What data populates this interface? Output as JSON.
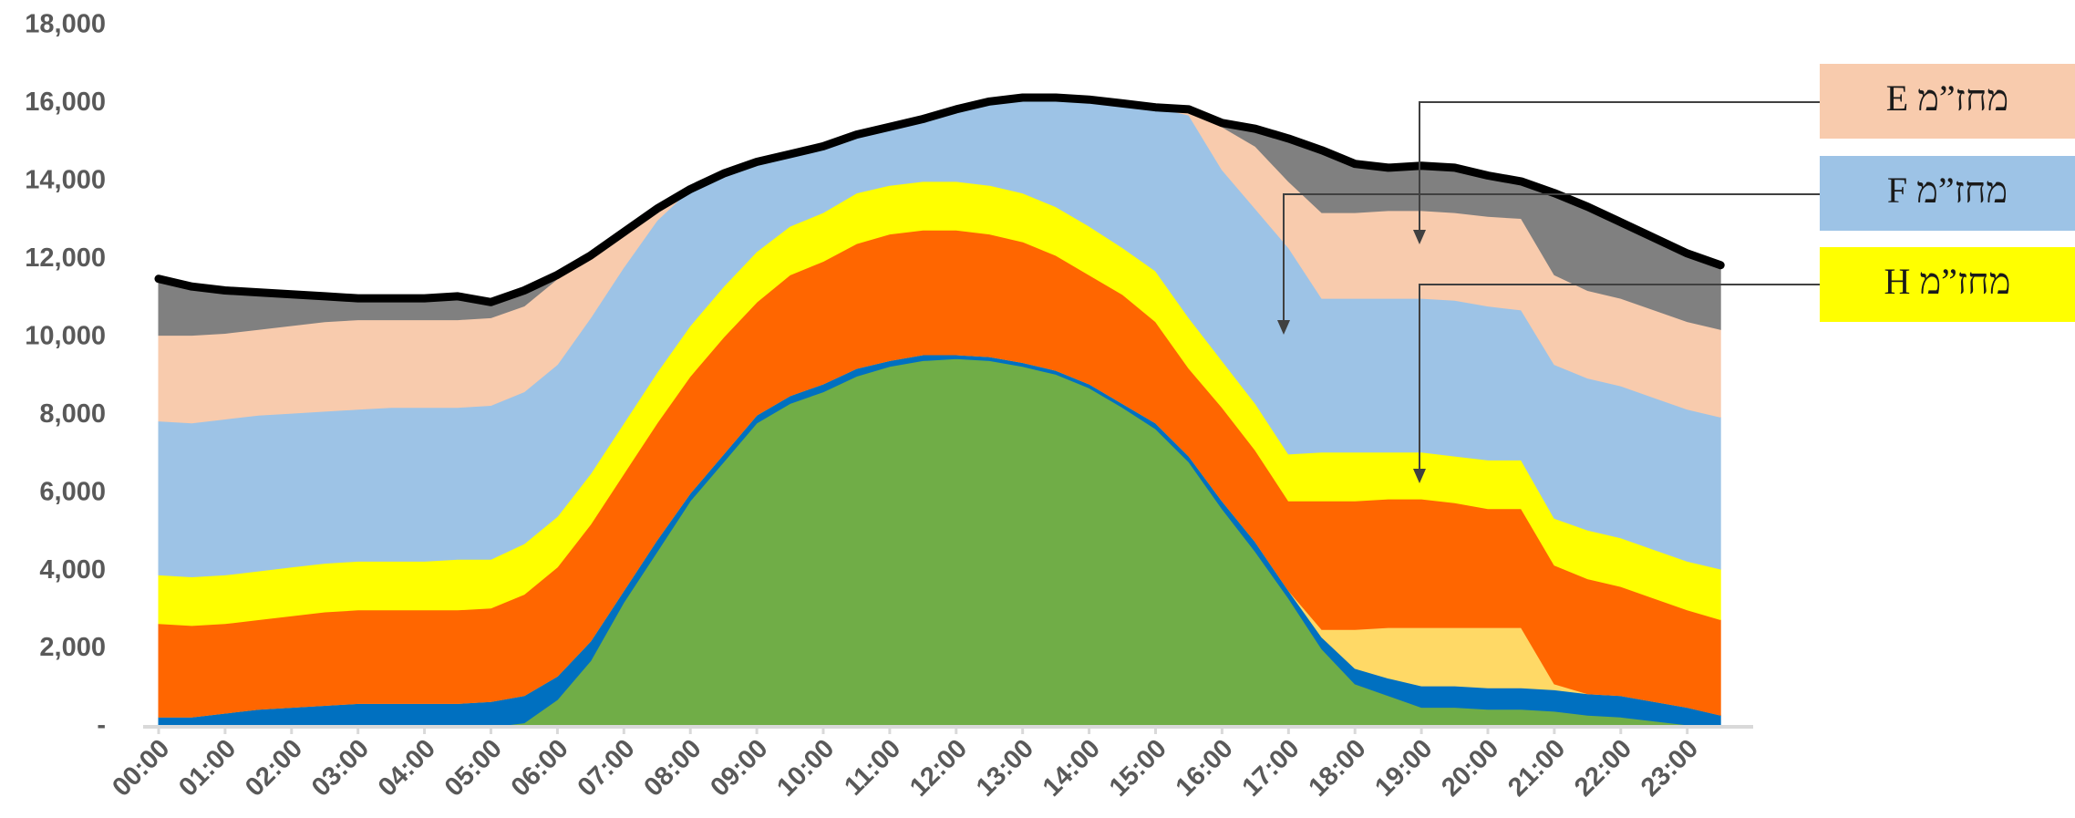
{
  "chart_data": {
    "type": "stacked-area",
    "categories": [
      "00:00",
      null,
      "01:00",
      null,
      "02:00",
      null,
      "03:00",
      null,
      "04:00",
      null,
      "05:00",
      null,
      "06:00",
      null,
      "07:00",
      null,
      "08:00",
      null,
      "09:00",
      null,
      "10:00",
      null,
      "11:00",
      null,
      "12:00",
      null,
      "13:00",
      null,
      "14:00",
      null,
      "15:00",
      null,
      "16:00",
      null,
      "17:00",
      null,
      "18:00",
      null,
      "19:00",
      null,
      "20:00",
      null,
      "21:00",
      null,
      "22:00",
      null,
      "23:00",
      null
    ],
    "series": [
      {
        "color": "#70ad47",
        "values": [
          0,
          0,
          0,
          0,
          0,
          0,
          0,
          0,
          0,
          0,
          0,
          100,
          700,
          1700,
          3200,
          4500,
          5800,
          6800,
          7800,
          8300,
          8600,
          9000,
          9250,
          9400,
          9450,
          9400,
          9250,
          9050,
          8700,
          8200,
          7650,
          6800,
          5600,
          4500,
          3300,
          2000,
          1100,
          800,
          500,
          500,
          450,
          450,
          400,
          300,
          250,
          150,
          50,
          0
        ]
      },
      {
        "color": "#0070c0",
        "values": [
          250,
          250,
          350,
          450,
          500,
          550,
          600,
          600,
          600,
          600,
          650,
          700,
          600,
          500,
          300,
          300,
          200,
          200,
          200,
          200,
          200,
          200,
          150,
          150,
          100,
          100,
          100,
          100,
          100,
          100,
          150,
          150,
          200,
          250,
          200,
          300,
          400,
          450,
          550,
          550,
          550,
          550,
          550,
          550,
          550,
          500,
          450,
          300
        ]
      },
      {
        "color": "#ffd966",
        "values": [
          0,
          0,
          0,
          0,
          0,
          0,
          0,
          0,
          0,
          0,
          0,
          0,
          0,
          0,
          0,
          0,
          0,
          0,
          0,
          0,
          0,
          0,
          0,
          0,
          0,
          0,
          0,
          0,
          0,
          0,
          0,
          0,
          0,
          0,
          0,
          200,
          1000,
          1300,
          1500,
          1500,
          1550,
          1550,
          150,
          0,
          0,
          0,
          0,
          0
        ]
      },
      {
        "color": "#ff6600",
        "values": [
          2400,
          2350,
          2300,
          2300,
          2350,
          2400,
          2400,
          2400,
          2400,
          2400,
          2400,
          2600,
          2800,
          3000,
          3000,
          3000,
          3000,
          3000,
          2900,
          3100,
          3150,
          3200,
          3250,
          3200,
          3200,
          3150,
          3100,
          2950,
          2800,
          2800,
          2600,
          2250,
          2400,
          2350,
          2300,
          3300,
          3300,
          3300,
          3300,
          3200,
          3050,
          3050,
          3050,
          2950,
          2800,
          2650,
          2500,
          2450
        ]
      },
      {
        "name": "מחז”מ H",
        "color": "#ffff00",
        "values": [
          1250,
          1250,
          1250,
          1250,
          1250,
          1250,
          1250,
          1250,
          1250,
          1300,
          1250,
          1300,
          1300,
          1300,
          1300,
          1300,
          1300,
          1300,
          1300,
          1250,
          1250,
          1300,
          1250,
          1250,
          1250,
          1250,
          1250,
          1250,
          1250,
          1200,
          1300,
          1300,
          1200,
          1200,
          1200,
          1250,
          1250,
          1200,
          1200,
          1200,
          1250,
          1250,
          1200,
          1250,
          1250,
          1250,
          1250,
          1300
        ]
      },
      {
        "name": "מחז”מ F",
        "color": "#9dc3e6",
        "values": [
          3950,
          3950,
          4000,
          4000,
          3950,
          3900,
          3900,
          3950,
          3950,
          3900,
          3950,
          3900,
          3900,
          4000,
          4000,
          3900,
          3500,
          2900,
          2300,
          1850,
          1700,
          1500,
          1500,
          1600,
          1850,
          2150,
          2450,
          2800,
          3250,
          3700,
          4200,
          5200,
          4900,
          5000,
          5300,
          3950,
          3950,
          3950,
          3950,
          4000,
          3950,
          3850,
          3950,
          3900,
          3900,
          3900,
          3900,
          3900
        ]
      },
      {
        "name": "מחז”מ E",
        "color": "#f8cbad",
        "values": [
          2200,
          2250,
          2200,
          2200,
          2250,
          2300,
          2300,
          2250,
          2250,
          2250,
          2250,
          2200,
          2200,
          1600,
          900,
          300,
          0,
          0,
          0,
          0,
          0,
          0,
          0,
          0,
          0,
          0,
          0,
          0,
          0,
          0,
          0,
          150,
          1100,
          1600,
          1700,
          2200,
          2200,
          2250,
          2250,
          2250,
          2300,
          2350,
          2300,
          2250,
          2250,
          2250,
          2250,
          2250
        ]
      },
      {
        "color": "#808080",
        "outline": "#000000",
        "values": [
          1450,
          1250,
          1100,
          950,
          800,
          650,
          550,
          550,
          550,
          600,
          400,
          400,
          100,
          0,
          0,
          0,
          0,
          0,
          0,
          0,
          0,
          0,
          0,
          0,
          0,
          0,
          0,
          0,
          0,
          0,
          0,
          0,
          100,
          450,
          1100,
          1600,
          1250,
          1100,
          1150,
          1150,
          1050,
          950,
          2100,
          2150,
          1950,
          1850,
          1750,
          1650
        ]
      }
    ],
    "ylim": [
      0,
      18000
    ],
    "yticks": [
      {
        "value": 0,
        "label": "-"
      },
      {
        "value": 2000,
        "label": "2,000"
      },
      {
        "value": 4000,
        "label": "4,000"
      },
      {
        "value": 6000,
        "label": "6,000"
      },
      {
        "value": 8000,
        "label": "8,000"
      },
      {
        "value": 10000,
        "label": "10,000"
      },
      {
        "value": 12000,
        "label": "12,000"
      },
      {
        "value": 14000,
        "label": "14,000"
      },
      {
        "value": 16000,
        "label": "16,000"
      },
      {
        "value": 18000,
        "label": "18,000"
      }
    ],
    "grid": false,
    "legend": "right"
  }
}
